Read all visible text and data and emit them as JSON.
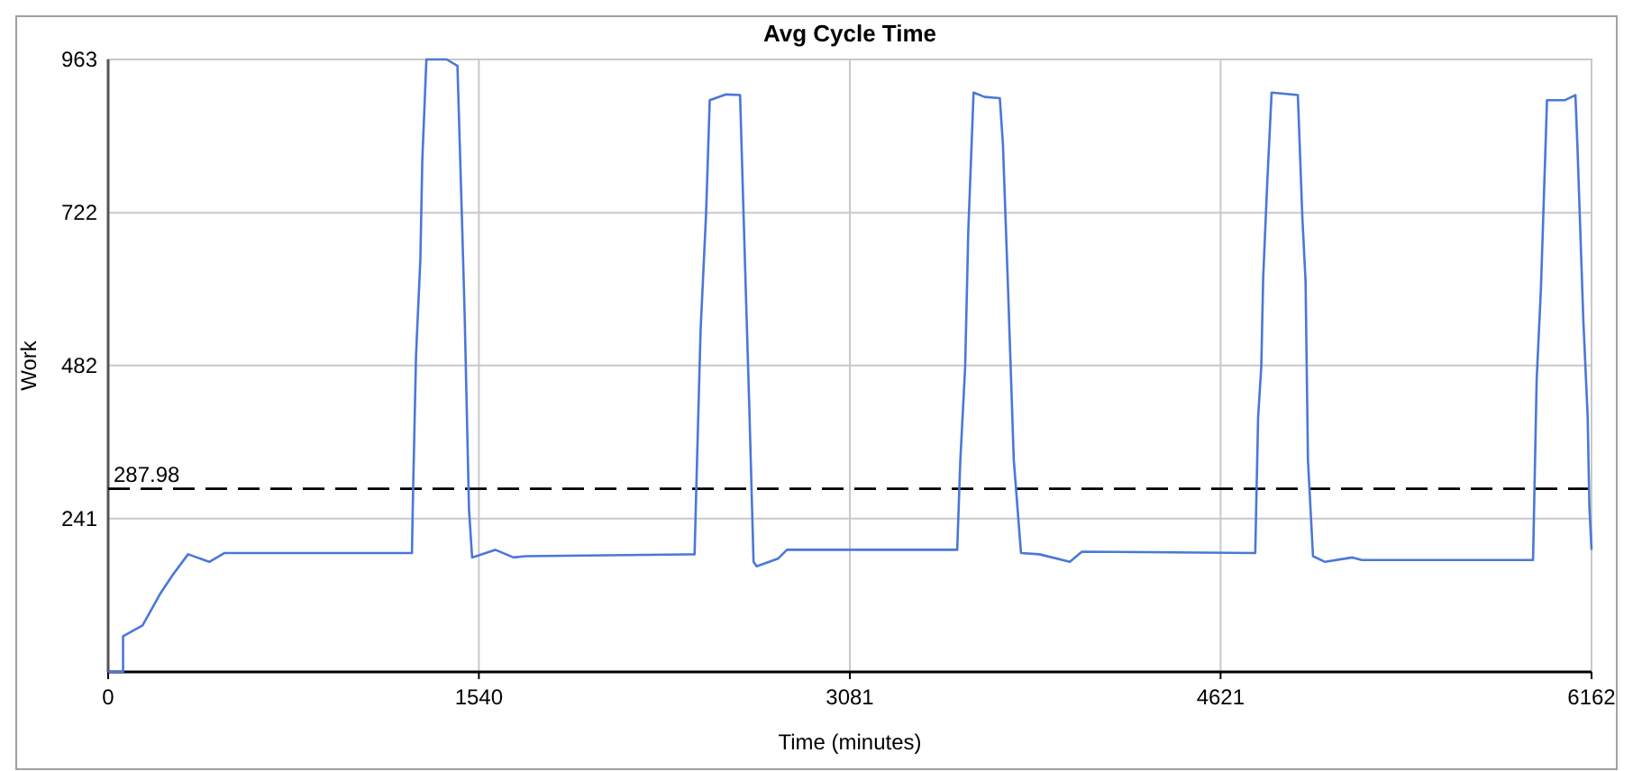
{
  "chart_data": {
    "type": "line",
    "title": "Avg Cycle Time",
    "xlabel": "Time (minutes)",
    "ylabel": "Work",
    "xlim": [
      0,
      6162
    ],
    "xticks": [
      0,
      1540,
      3081,
      4621,
      6162
    ],
    "ylim": [
      0,
      963
    ],
    "yticks": [
      241,
      482,
      722,
      963
    ],
    "grid": true,
    "marker": "none",
    "line_style": "solid",
    "ref_lines": [
      {
        "axis": "y",
        "value": 287.98,
        "label": "287.98",
        "color": "#000000",
        "line_style": "dashed"
      }
    ],
    "series": [
      {
        "color": "#4a78d8",
        "x": [
          0,
          62,
          62,
          143,
          218,
          269,
          332,
          420,
          484,
          1262,
          1267,
          1279,
          1297,
          1305,
          1322,
          1406,
          1451,
          1469,
          1481,
          1499,
          1512,
          1608,
          1684,
          1734,
          2436,
          2446,
          2461,
          2484,
          2499,
          2567,
          2625,
          2648,
          2663,
          2681,
          2694,
          2782,
          2820,
          3527,
          3540,
          3560,
          3573,
          3595,
          3641,
          3704,
          3717,
          3737,
          3762,
          3792,
          3868,
          3995,
          4045,
          4765,
          4777,
          4790,
          4798,
          4815,
          4833,
          4942,
          4961,
          4974,
          4984,
          5005,
          5055,
          5169,
          5207,
          5919,
          5934,
          5952,
          5977,
          6052,
          6095,
          6103,
          6128,
          6146,
          6153,
          6162
        ],
        "values": [
          0,
          0,
          56,
          73,
          124,
          153,
          185,
          173,
          187,
          187,
          289,
          498,
          649,
          804,
          963,
          963,
          953,
          722,
          561,
          255,
          180,
          192,
          180,
          182,
          185,
          328,
          537,
          722,
          899,
          908,
          907,
          610,
          421,
          173,
          166,
          178,
          192,
          192,
          333,
          479,
          693,
          911,
          904,
          902,
          829,
          615,
          333,
          187,
          185,
          173,
          189,
          187,
          401,
          479,
          620,
          770,
          911,
          907,
          712,
          615,
          333,
          182,
          173,
          180,
          176,
          176,
          459,
          605,
          899,
          899,
          907,
          831,
          552,
          401,
          260,
          192
        ]
      }
    ]
  }
}
